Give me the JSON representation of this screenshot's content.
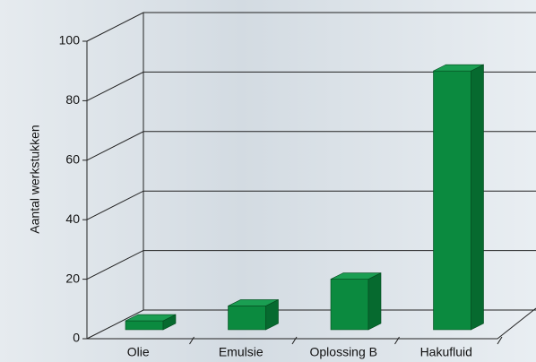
{
  "chart_data": {
    "type": "bar3d",
    "y_label": "Aantal werkstukken",
    "categories": [
      "Olie",
      "Emulsie",
      "Oplossing B",
      "Hakufluid"
    ],
    "values": [
      3,
      8,
      17,
      87
    ],
    "color": "#0b8a3f",
    "ylim": [
      0,
      100
    ],
    "yticks": [
      0,
      20,
      40,
      60,
      80,
      100
    ],
    "grid": true
  }
}
